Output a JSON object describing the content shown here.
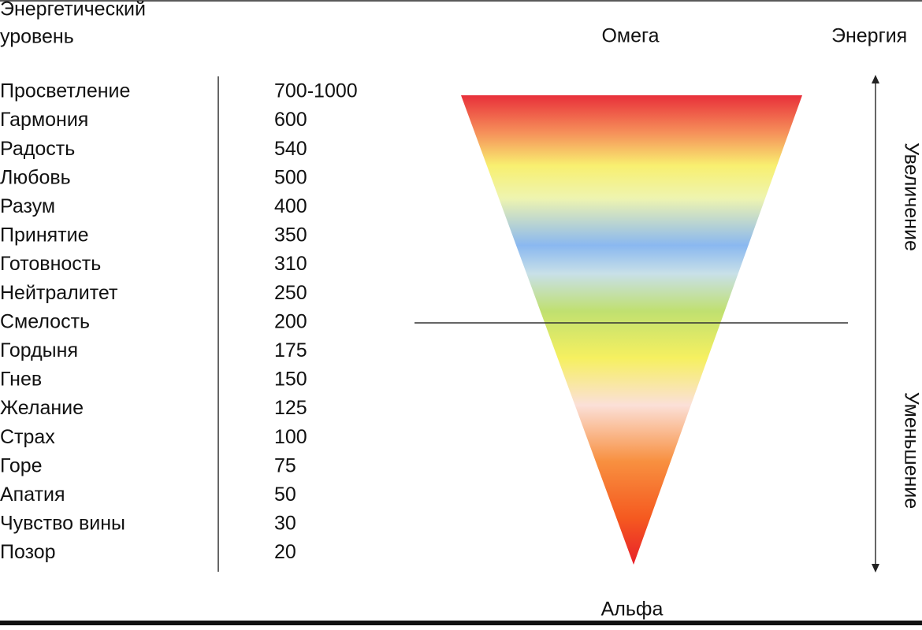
{
  "header": {
    "title_lines": [
      "Энергетический",
      "уровень"
    ]
  },
  "table": {
    "rows": [
      [
        "Просветление",
        "700-1000"
      ],
      [
        "Гармония",
        600
      ],
      [
        "Радость",
        540
      ],
      [
        "Любовь",
        500
      ],
      [
        "Разум",
        400
      ],
      [
        "Принятие",
        350
      ],
      [
        "Готовность",
        310
      ],
      [
        "Нейтралитет",
        250
      ],
      [
        "Смелость",
        200
      ],
      [
        "Гордыня",
        175
      ],
      [
        "Гнев",
        150
      ],
      [
        "Желание",
        125
      ],
      [
        "Страх",
        100
      ],
      [
        "Горе",
        75
      ],
      [
        "Апатия",
        50
      ],
      [
        "Чувство вины",
        30
      ],
      [
        "Позор",
        20
      ]
    ]
  },
  "diagram": {
    "top_label": "Омега",
    "bottom_label": "Альфа",
    "axis_label": "Энергия",
    "up_label": "Увеличение",
    "down_label": "Уменьшение"
  }
}
